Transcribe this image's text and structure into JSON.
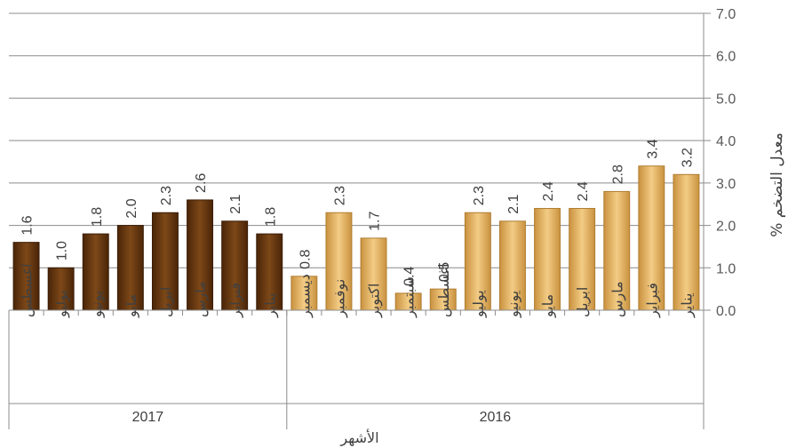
{
  "chart_data": {
    "type": "bar",
    "ylabel": "معدل التضخم %",
    "xlabel": "الأشهر",
    "ylim": [
      0,
      7
    ],
    "yticks": [
      "0.0",
      "1.0",
      "2.0",
      "3.0",
      "4.0",
      "5.0",
      "6.0",
      "7.0"
    ],
    "grid": true,
    "axis_side": "right",
    "groups": [
      {
        "year": "2016",
        "color": "#e0b060",
        "months": [
          "يناير",
          "فبراير",
          "مارس",
          "ابريل",
          "مايو",
          "يونيو",
          "يوليو",
          "اغسطس",
          "سبتمبر",
          "اكتوبر",
          "نوفمبر",
          "ديسمبر"
        ],
        "values": [
          3.2,
          3.4,
          2.8,
          2.4,
          2.4,
          2.1,
          2.3,
          0.5,
          0.4,
          1.7,
          2.3,
          0.8
        ],
        "labels": [
          "3.2",
          "3.4",
          "2.8",
          "2.4",
          "2.4",
          "2.1",
          "2.3",
          "0.5",
          "0.4",
          "1.7",
          "2.3",
          "0.8"
        ]
      },
      {
        "year": "2017",
        "color": "#6b3a14",
        "months": [
          "يناير",
          "فبراير",
          "مارس",
          "ابريل",
          "مايو",
          "يونيو",
          "يوليو",
          "اغسطس"
        ],
        "values": [
          1.8,
          2.1,
          2.6,
          2.3,
          2.0,
          1.8,
          1.0,
          1.6
        ],
        "labels": [
          "1.8",
          "2.1",
          "2.6",
          "2.3",
          "2.0",
          "1.8",
          "1.0",
          "1.6"
        ]
      }
    ]
  }
}
